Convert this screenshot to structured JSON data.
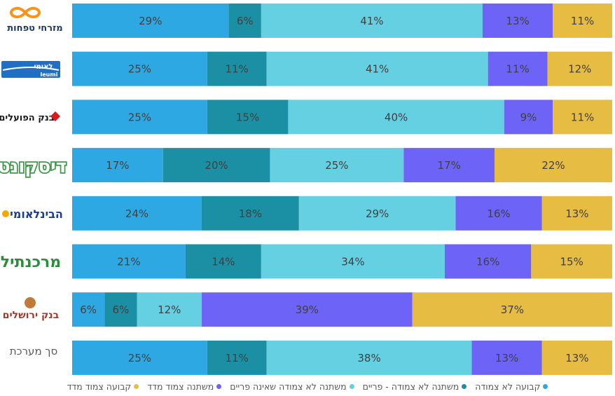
{
  "chart_data": {
    "type": "bar",
    "orientation": "horizontal",
    "stacked": true,
    "normalized": true,
    "categories": [
      "מזרחי טפחות",
      "לאומי",
      "בנק הפועלים",
      "דיסקונט",
      "הבינלאומי",
      "מרכנתיל",
      "בנק ירושלים",
      "סך מערכת"
    ],
    "series": [
      {
        "name": "קבועה לא צמודה",
        "color": "#2EA8E2",
        "values": [
          29,
          25,
          25,
          17,
          24,
          21,
          6,
          25
        ]
      },
      {
        "name": "משתנה לא צמודה - פריים",
        "color": "#1B8FA3",
        "values": [
          6,
          11,
          15,
          20,
          18,
          14,
          6,
          11
        ]
      },
      {
        "name": "משתנה לא צמודה שאינה פריים",
        "color": "#66D0E3",
        "values": [
          41,
          41,
          40,
          25,
          29,
          34,
          12,
          38
        ]
      },
      {
        "name": "משתנה צמוד מדד",
        "color": "#6D63F7",
        "values": [
          13,
          11,
          9,
          17,
          16,
          16,
          39,
          13
        ]
      },
      {
        "name": "קבועה צמוד מדד",
        "color": "#E6BC43",
        "values": [
          11,
          12,
          11,
          22,
          13,
          15,
          37,
          13
        ]
      }
    ],
    "data_label_suffix": "%",
    "legend_position": "bottom"
  },
  "logos": {
    "mizrahi": {
      "text": "מזרחי טפחות",
      "icon": "infinity-logo-icon",
      "color": "#F7941D"
    },
    "leumi": {
      "text_he": "לאומי",
      "text_en": "leumi",
      "color": "#1F6FC5"
    },
    "hapoalim": {
      "text": "בנק הפועלים",
      "icon": "red-diamond-icon",
      "color": "#D71920"
    },
    "discount": {
      "text": "דיסקונט",
      "color": "#3E9A48"
    },
    "beinleumi": {
      "text": "הבינלאומי",
      "color": "#1D3D8F",
      "accent": "#F2A900"
    },
    "mercantile": {
      "text": "מרכנתיל",
      "color": "#2E8B3E"
    },
    "jerusalem": {
      "text": "בנק ירושלים",
      "icon": "round-emblem-icon",
      "color": "#9E3A2A"
    }
  },
  "total_label": "סך מערכת"
}
